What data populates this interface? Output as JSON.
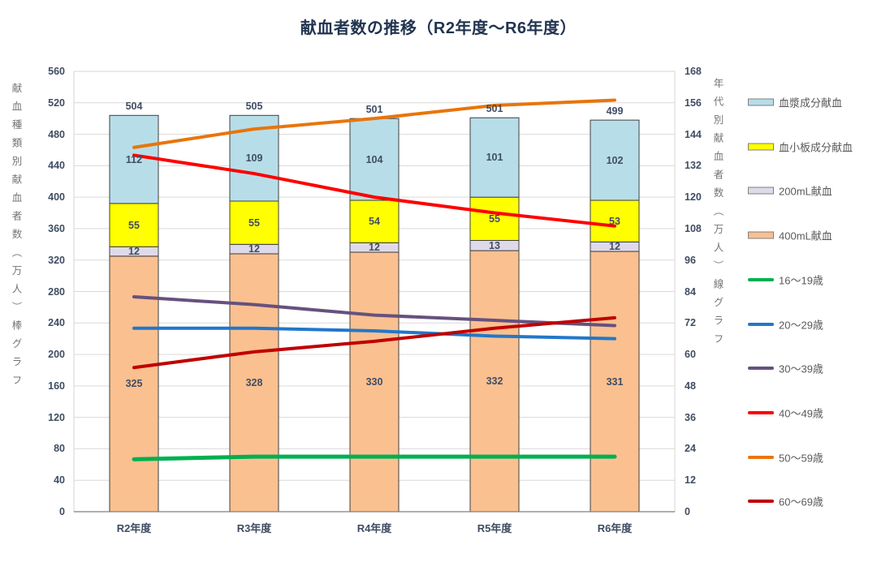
{
  "chart_data": {
    "type": "combo-stacked-bar-line",
    "title": "献血者数の推移（R2年度～R6年度）",
    "categories": [
      "R2年度",
      "R3年度",
      "R4年度",
      "R5年度",
      "R6年度"
    ],
    "bar_axis": {
      "title": "献血種類別献血者数（万人）棒グラフ",
      "min": 0,
      "max": 560,
      "step": 40
    },
    "line_axis": {
      "title": "年代別献血者数（万人）線グラフ",
      "min": 0,
      "max": 168,
      "step": 12
    },
    "bar_totals": [
      504,
      505,
      501,
      501,
      499
    ],
    "bar_series": [
      {
        "name": "400mL献血",
        "color": "#FAC090",
        "values": [
          325,
          328,
          330,
          332,
          331
        ]
      },
      {
        "name": "200mL献血",
        "color": "#DFDAEA",
        "values": [
          12,
          12,
          12,
          13,
          12
        ]
      },
      {
        "name": "血小板成分献血",
        "color": "#FFFF00",
        "values": [
          55,
          55,
          54,
          55,
          53
        ]
      },
      {
        "name": "血漿成分献血",
        "color": "#B7DEE8",
        "values": [
          112,
          109,
          104,
          101,
          102
        ]
      }
    ],
    "line_series": [
      {
        "name": "16～19歳",
        "color": "#00B050",
        "values": [
          20,
          21,
          21,
          21,
          21
        ]
      },
      {
        "name": "20～29歳",
        "color": "#2277C9",
        "values": [
          70,
          70,
          69,
          67,
          66
        ]
      },
      {
        "name": "30～39歳",
        "color": "#66517E",
        "values": [
          82,
          79,
          75,
          73,
          71
        ]
      },
      {
        "name": "40～49歳",
        "color": "#FE0000",
        "values": [
          136,
          129,
          120,
          114,
          109
        ]
      },
      {
        "name": "50～59歳",
        "color": "#E8750C",
        "values": [
          139,
          146,
          150,
          155,
          157
        ]
      },
      {
        "name": "60～69歳",
        "color": "#C00000",
        "values": [
          55,
          61,
          65,
          70,
          74
        ]
      }
    ],
    "legend_position": "right",
    "grid": true,
    "styles": {
      "grid_color": "#D9D9D9",
      "plot_border_color": "#D6D6D6",
      "x_axis_color": "#7F7F7F",
      "bar_border_color": "#3F3F3F",
      "label_color": "#3F4D63"
    }
  }
}
